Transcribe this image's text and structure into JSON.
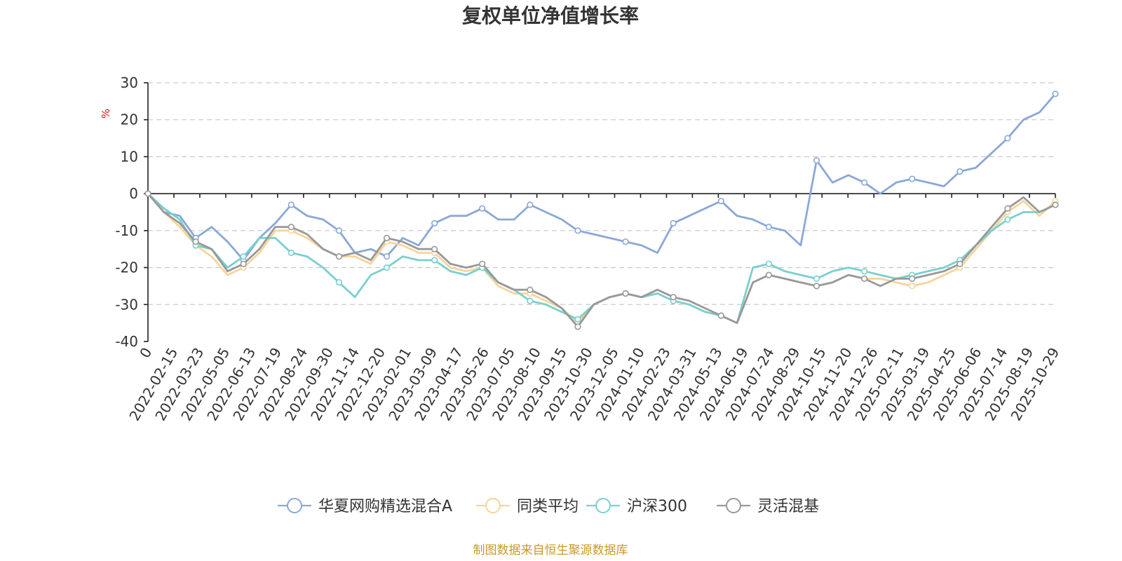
{
  "chart_data": {
    "type": "line",
    "title": "复权单位净值增长率",
    "ylabel": "%",
    "ylim": [
      -40,
      30
    ],
    "yticks": [
      30,
      20,
      10,
      0,
      -10,
      -20,
      -30,
      -40
    ],
    "x_tick_labels": [
      "0",
      "2022-02-15",
      "2022-03-23",
      "2022-05-05",
      "2022-06-13",
      "2022-07-19",
      "2022-08-24",
      "2022-09-30",
      "2022-11-14",
      "2022-12-20",
      "2023-02-01",
      "2023-03-09",
      "2023-04-17",
      "2023-05-26",
      "2023-07-05",
      "2023-08-10",
      "2023-09-15",
      "2023-10-30",
      "2023-12-05",
      "2024-01-10",
      "2024-02-23",
      "2024-03-31",
      "2024-05-13",
      "2024-06-19",
      "2024-07-24",
      "2024-08-29",
      "2024-10-15",
      "2024-11-20",
      "2024-12-26",
      "2025-02-11",
      "2025-03-19",
      "2025-04-25",
      "2025-06-06",
      "2025-07-14",
      "2025-08-19",
      "2025-10-29"
    ],
    "grid": true,
    "legend_position": "bottom",
    "series": [
      {
        "name": "华夏网购精选混合A",
        "color": "#8aa8d8",
        "values": [
          0,
          -5,
          -6,
          -12,
          -9,
          -13,
          -18,
          -12,
          -8,
          -3,
          -6,
          -7,
          -10,
          -16,
          -15,
          -17,
          -12,
          -14,
          -8,
          -6,
          -6,
          -4,
          -7,
          -7,
          -3,
          -5,
          -7,
          -10,
          -11,
          -12,
          -13,
          -14,
          -16,
          -8,
          -6,
          -4,
          -2,
          -6,
          -7,
          -9,
          -10,
          -14,
          9,
          3,
          5,
          3,
          0,
          3,
          4,
          3,
          2,
          6,
          7,
          11,
          15,
          20,
          22,
          27
        ]
      },
      {
        "name": "同类平均",
        "color": "#f6d59a",
        "values": [
          0,
          -5,
          -9,
          -14,
          -17,
          -22,
          -20,
          -16,
          -10,
          -10,
          -12,
          -15,
          -17,
          -17,
          -19,
          -13,
          -14,
          -16,
          -16,
          -20,
          -21,
          -20,
          -25,
          -27,
          -27,
          -29,
          -31,
          -35,
          -30,
          -28,
          -27,
          -28,
          -27,
          -29,
          -30,
          -32,
          -33,
          -35,
          -24,
          -22,
          -23,
          -24,
          -25,
          -24,
          -22,
          -23,
          -23,
          -24,
          -25,
          -24,
          -22,
          -20,
          -15,
          -10,
          -5,
          -2,
          -6,
          -2
        ]
      },
      {
        "name": "沪深300",
        "color": "#7acfcf",
        "values": [
          0,
          -4,
          -7,
          -14,
          -15,
          -20,
          -17,
          -12,
          -12,
          -16,
          -17,
          -20,
          -24,
          -28,
          -22,
          -20,
          -17,
          -18,
          -18,
          -21,
          -22,
          -20,
          -24,
          -26,
          -29,
          -30,
          -32,
          -34,
          -30,
          -28,
          -27,
          -28,
          -27,
          -29,
          -30,
          -32,
          -33,
          -35,
          -20,
          -19,
          -21,
          -22,
          -23,
          -21,
          -20,
          -21,
          -22,
          -23,
          -22,
          -21,
          -20,
          -18,
          -14,
          -10,
          -7,
          -5,
          -5,
          -3
        ]
      },
      {
        "name": "灵活混基",
        "color": "#999999",
        "values": [
          0,
          -5,
          -8,
          -13,
          -15,
          -21,
          -19,
          -15,
          -9,
          -9,
          -11,
          -15,
          -17,
          -16,
          -18,
          -12,
          -13,
          -15,
          -15,
          -19,
          -20,
          -19,
          -24,
          -26,
          -26,
          -28,
          -31,
          -36,
          -30,
          -28,
          -27,
          -28,
          -26,
          -28,
          -29,
          -31,
          -33,
          -35,
          -24,
          -22,
          -23,
          -24,
          -25,
          -24,
          -22,
          -23,
          -25,
          -23,
          -23,
          -22,
          -21,
          -19,
          -14,
          -9,
          -4,
          -1,
          -5,
          -3
        ]
      }
    ]
  },
  "footer": "制图数据来自恒生聚源数据库"
}
